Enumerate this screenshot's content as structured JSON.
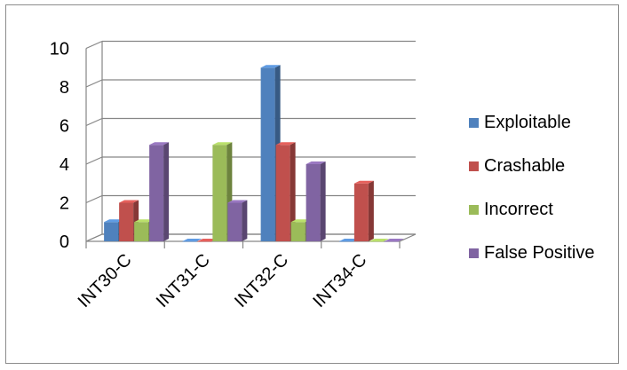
{
  "chart_data": {
    "type": "bar",
    "title": "",
    "xlabel": "",
    "ylabel": "",
    "categories": [
      "INT30-C",
      "INT31-C",
      "INT32-C",
      "INT34-C"
    ],
    "series": [
      {
        "name": "Exploitable",
        "color": "#4f81bd",
        "values": [
          1,
          0,
          9,
          0
        ]
      },
      {
        "name": "Crashable",
        "color": "#c0504d",
        "values": [
          2,
          0,
          5,
          3
        ]
      },
      {
        "name": "Incorrect",
        "color": "#9bbb59",
        "values": [
          1,
          5,
          1,
          0
        ]
      },
      {
        "name": "False Positive",
        "color": "#8064a2",
        "values": [
          5,
          2,
          4,
          0
        ]
      }
    ],
    "yticks": [
      0,
      2,
      4,
      6,
      8,
      10
    ],
    "ylim": [
      0,
      10
    ],
    "grid": true,
    "legend": "right",
    "style": "3d-clustered-column"
  }
}
